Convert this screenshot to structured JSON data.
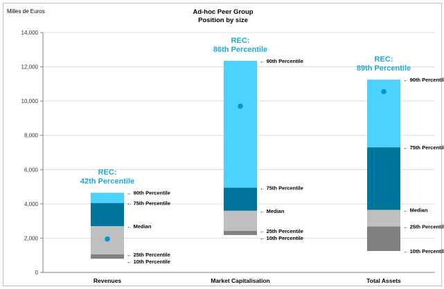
{
  "chart_data": {
    "type": "bar",
    "stacked": true,
    "title": "Ad-hoc Peer Group",
    "subtitle": "Position by size",
    "ylabel": "Milles de Euros",
    "ylim": [
      0,
      14000
    ],
    "yticks": [
      0,
      2000,
      4000,
      6000,
      8000,
      10000,
      12000,
      14000
    ],
    "ytick_labels": [
      "0",
      "2,000",
      "4,000",
      "6,000",
      "8,000",
      "10,000",
      "12,000",
      "14,000"
    ],
    "grid": true,
    "categories": [
      "Revenues",
      "Market Capitalisation",
      "Total Assets"
    ],
    "percentiles": [
      {
        "p10": 800,
        "p25": 1050,
        "median": 2700,
        "p75": 4050,
        "p90": 4650,
        "rec": 1950
      },
      {
        "p10": 2180,
        "p25": 2420,
        "median": 3600,
        "p75": 4950,
        "p90": 12350,
        "rec": 9700
      },
      {
        "p10": 1250,
        "p25": 2680,
        "median": 3650,
        "p75": 7300,
        "p90": 11250,
        "rec": 10550
      }
    ],
    "percentile_labels": {
      "p10": "10th Percentile",
      "p25": "25th Percentile",
      "median": "Median",
      "p75": "75th Percentile",
      "p90": "90th Percentile"
    },
    "annotations": [
      {
        "line1": "REC:",
        "line2": "42th Percentile"
      },
      {
        "line1": "REC:",
        "line2": "86th Percentile"
      },
      {
        "line1": "REC:",
        "line2": "89th Percentile"
      }
    ],
    "arrow": "←",
    "colors": {
      "p10_p25": "#808080",
      "p25_median": "#bfbfbf",
      "median_p75": "#00759b",
      "p75_p90": "#4dd2ff",
      "rec_marker": "#0097d0",
      "annotation": "#1fa7d6",
      "grid": "#d9d9d9"
    }
  }
}
